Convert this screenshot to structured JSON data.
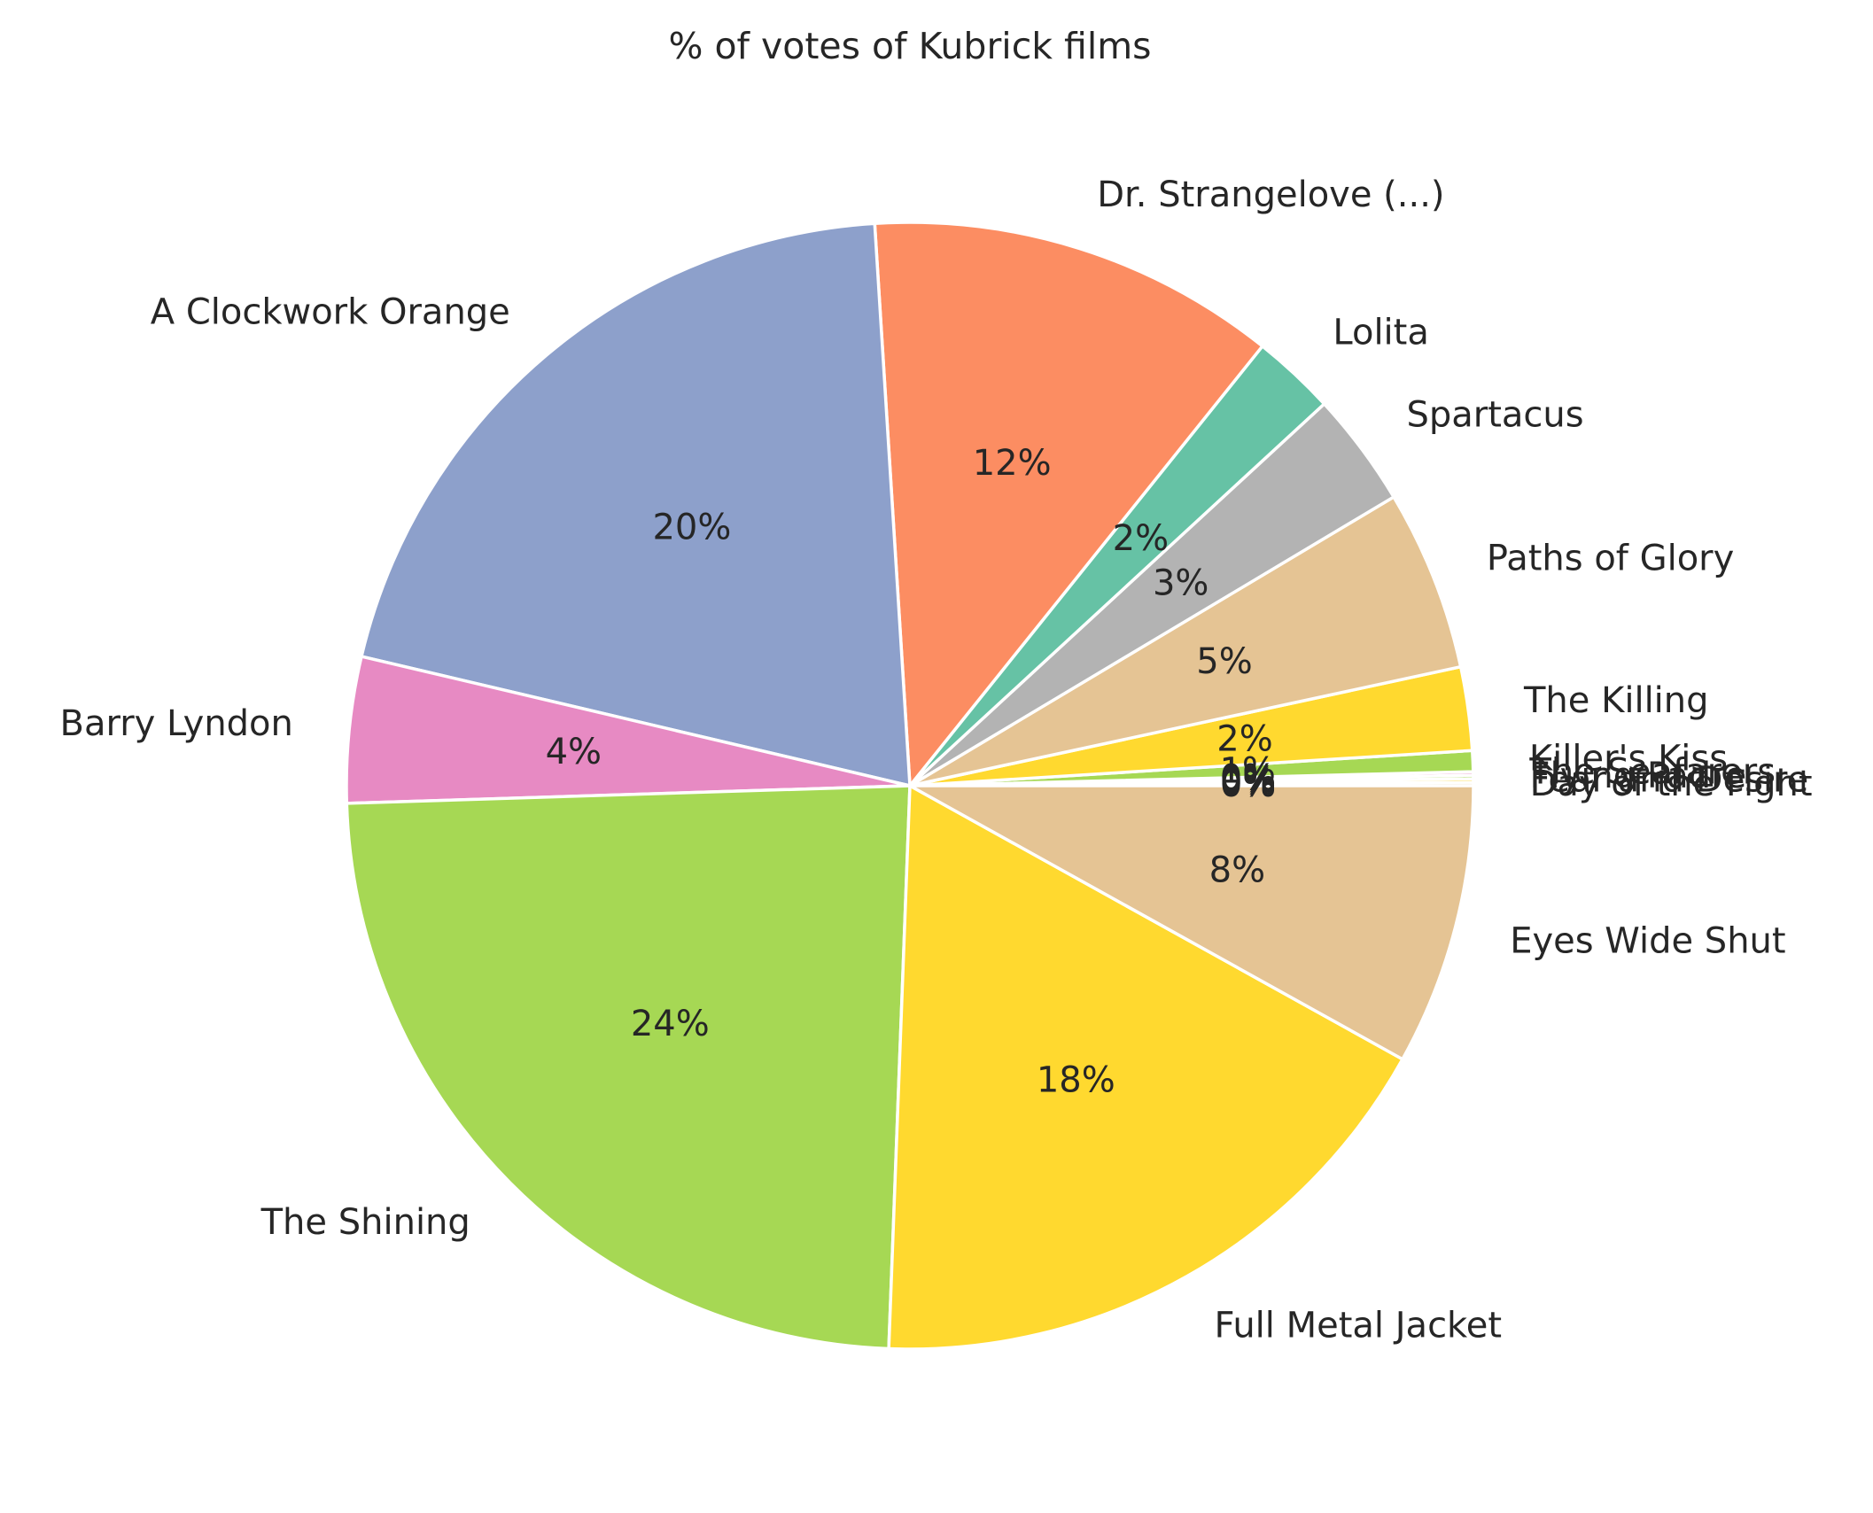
{
  "chart_data": {
    "type": "pie",
    "title": "% of votes of Kubrick films",
    "start_angle_deg": 0,
    "direction": "counterclockwise",
    "autopct_format": "{:.0f}%",
    "slices": [
      {
        "label": "Day of the Fight",
        "pct": 0.1,
        "color": "#e5c494"
      },
      {
        "label": "Fear and Desire",
        "pct": 0.1,
        "color": "#ffd92f"
      },
      {
        "label": "Flying Padre",
        "pct": 0.1,
        "color": "#a6d854"
      },
      {
        "label": "The Seafarers",
        "pct": 0.1,
        "color": "#e78ac3"
      },
      {
        "label": "Killer's Kiss",
        "pct": 0.6,
        "color": "#a6d854"
      },
      {
        "label": "The Killing",
        "pct": 2.4,
        "color": "#ffd92f"
      },
      {
        "label": "Paths of Glory",
        "pct": 5.2,
        "color": "#e5c494"
      },
      {
        "label": "Spartacus",
        "pct": 3.3,
        "color": "#b3b3b3"
      },
      {
        "label": "Lolita",
        "pct": 2.4,
        "color": "#66c2a5"
      },
      {
        "label": "Dr. Strangelove (...)",
        "pct": 11.8,
        "color": "#fc8d62"
      },
      {
        "label": "A Clockwork Orange",
        "pct": 20.4,
        "color": "#8da0cb"
      },
      {
        "label": "Barry Lyndon",
        "pct": 4.2,
        "color": "#e78ac3"
      },
      {
        "label": "The Shining",
        "pct": 24.0,
        "color": "#a6d854"
      },
      {
        "label": "Full Metal Jacket",
        "pct": 17.6,
        "color": "#ffd92f"
      },
      {
        "label": "Eyes Wide Shut",
        "pct": 8.1,
        "color": "#e5c494"
      }
    ]
  }
}
